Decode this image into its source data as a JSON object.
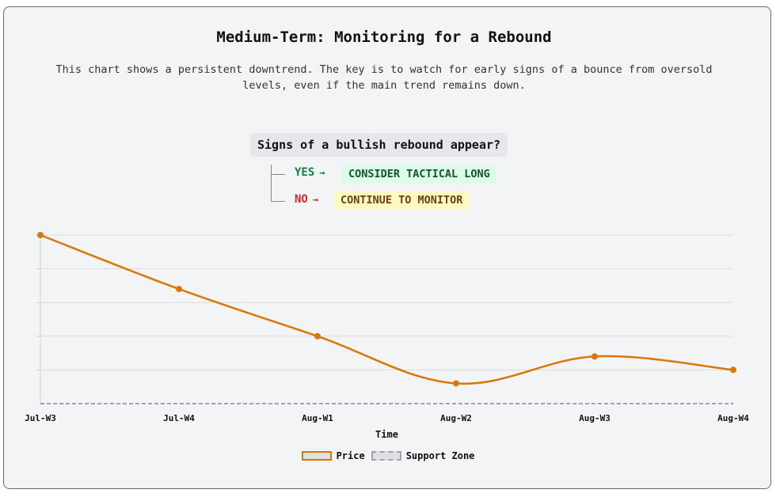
{
  "header": {
    "title": "Medium-Term: Monitoring for a Rebound",
    "subtitle": "This chart shows a persistent downtrend. The key is to watch for early signs of a bounce from oversold levels, even if the main trend remains down."
  },
  "decision": {
    "question": "Signs of a bullish rebound appear?",
    "yes_label": "YES",
    "yes_action": "CONSIDER TACTICAL LONG",
    "no_label": "NO",
    "no_action": "CONTINUE TO MONITOR",
    "arrow": "→"
  },
  "colors": {
    "price": "#d97706",
    "support": "#9ca3af",
    "grid": "#dcdcdc",
    "yes": "#15803d",
    "no": "#dc2626"
  },
  "chart_data": {
    "type": "line",
    "title": "",
    "xlabel": "Time",
    "ylabel": "",
    "categories": [
      "Jul-W3",
      "Jul-W4",
      "Aug-W1",
      "Aug-W2",
      "Aug-W3",
      "Aug-W4"
    ],
    "ylim": [
      0,
      100
    ],
    "y_tick_labels_shown": false,
    "grid": true,
    "legend_position": "bottom",
    "series": [
      {
        "name": "Price",
        "values": [
          100,
          68,
          40,
          12,
          28,
          20
        ],
        "smooth": true
      },
      {
        "name": "Support Zone",
        "values": [
          0,
          0,
          0,
          0,
          0,
          0
        ],
        "dashed": true
      }
    ]
  }
}
